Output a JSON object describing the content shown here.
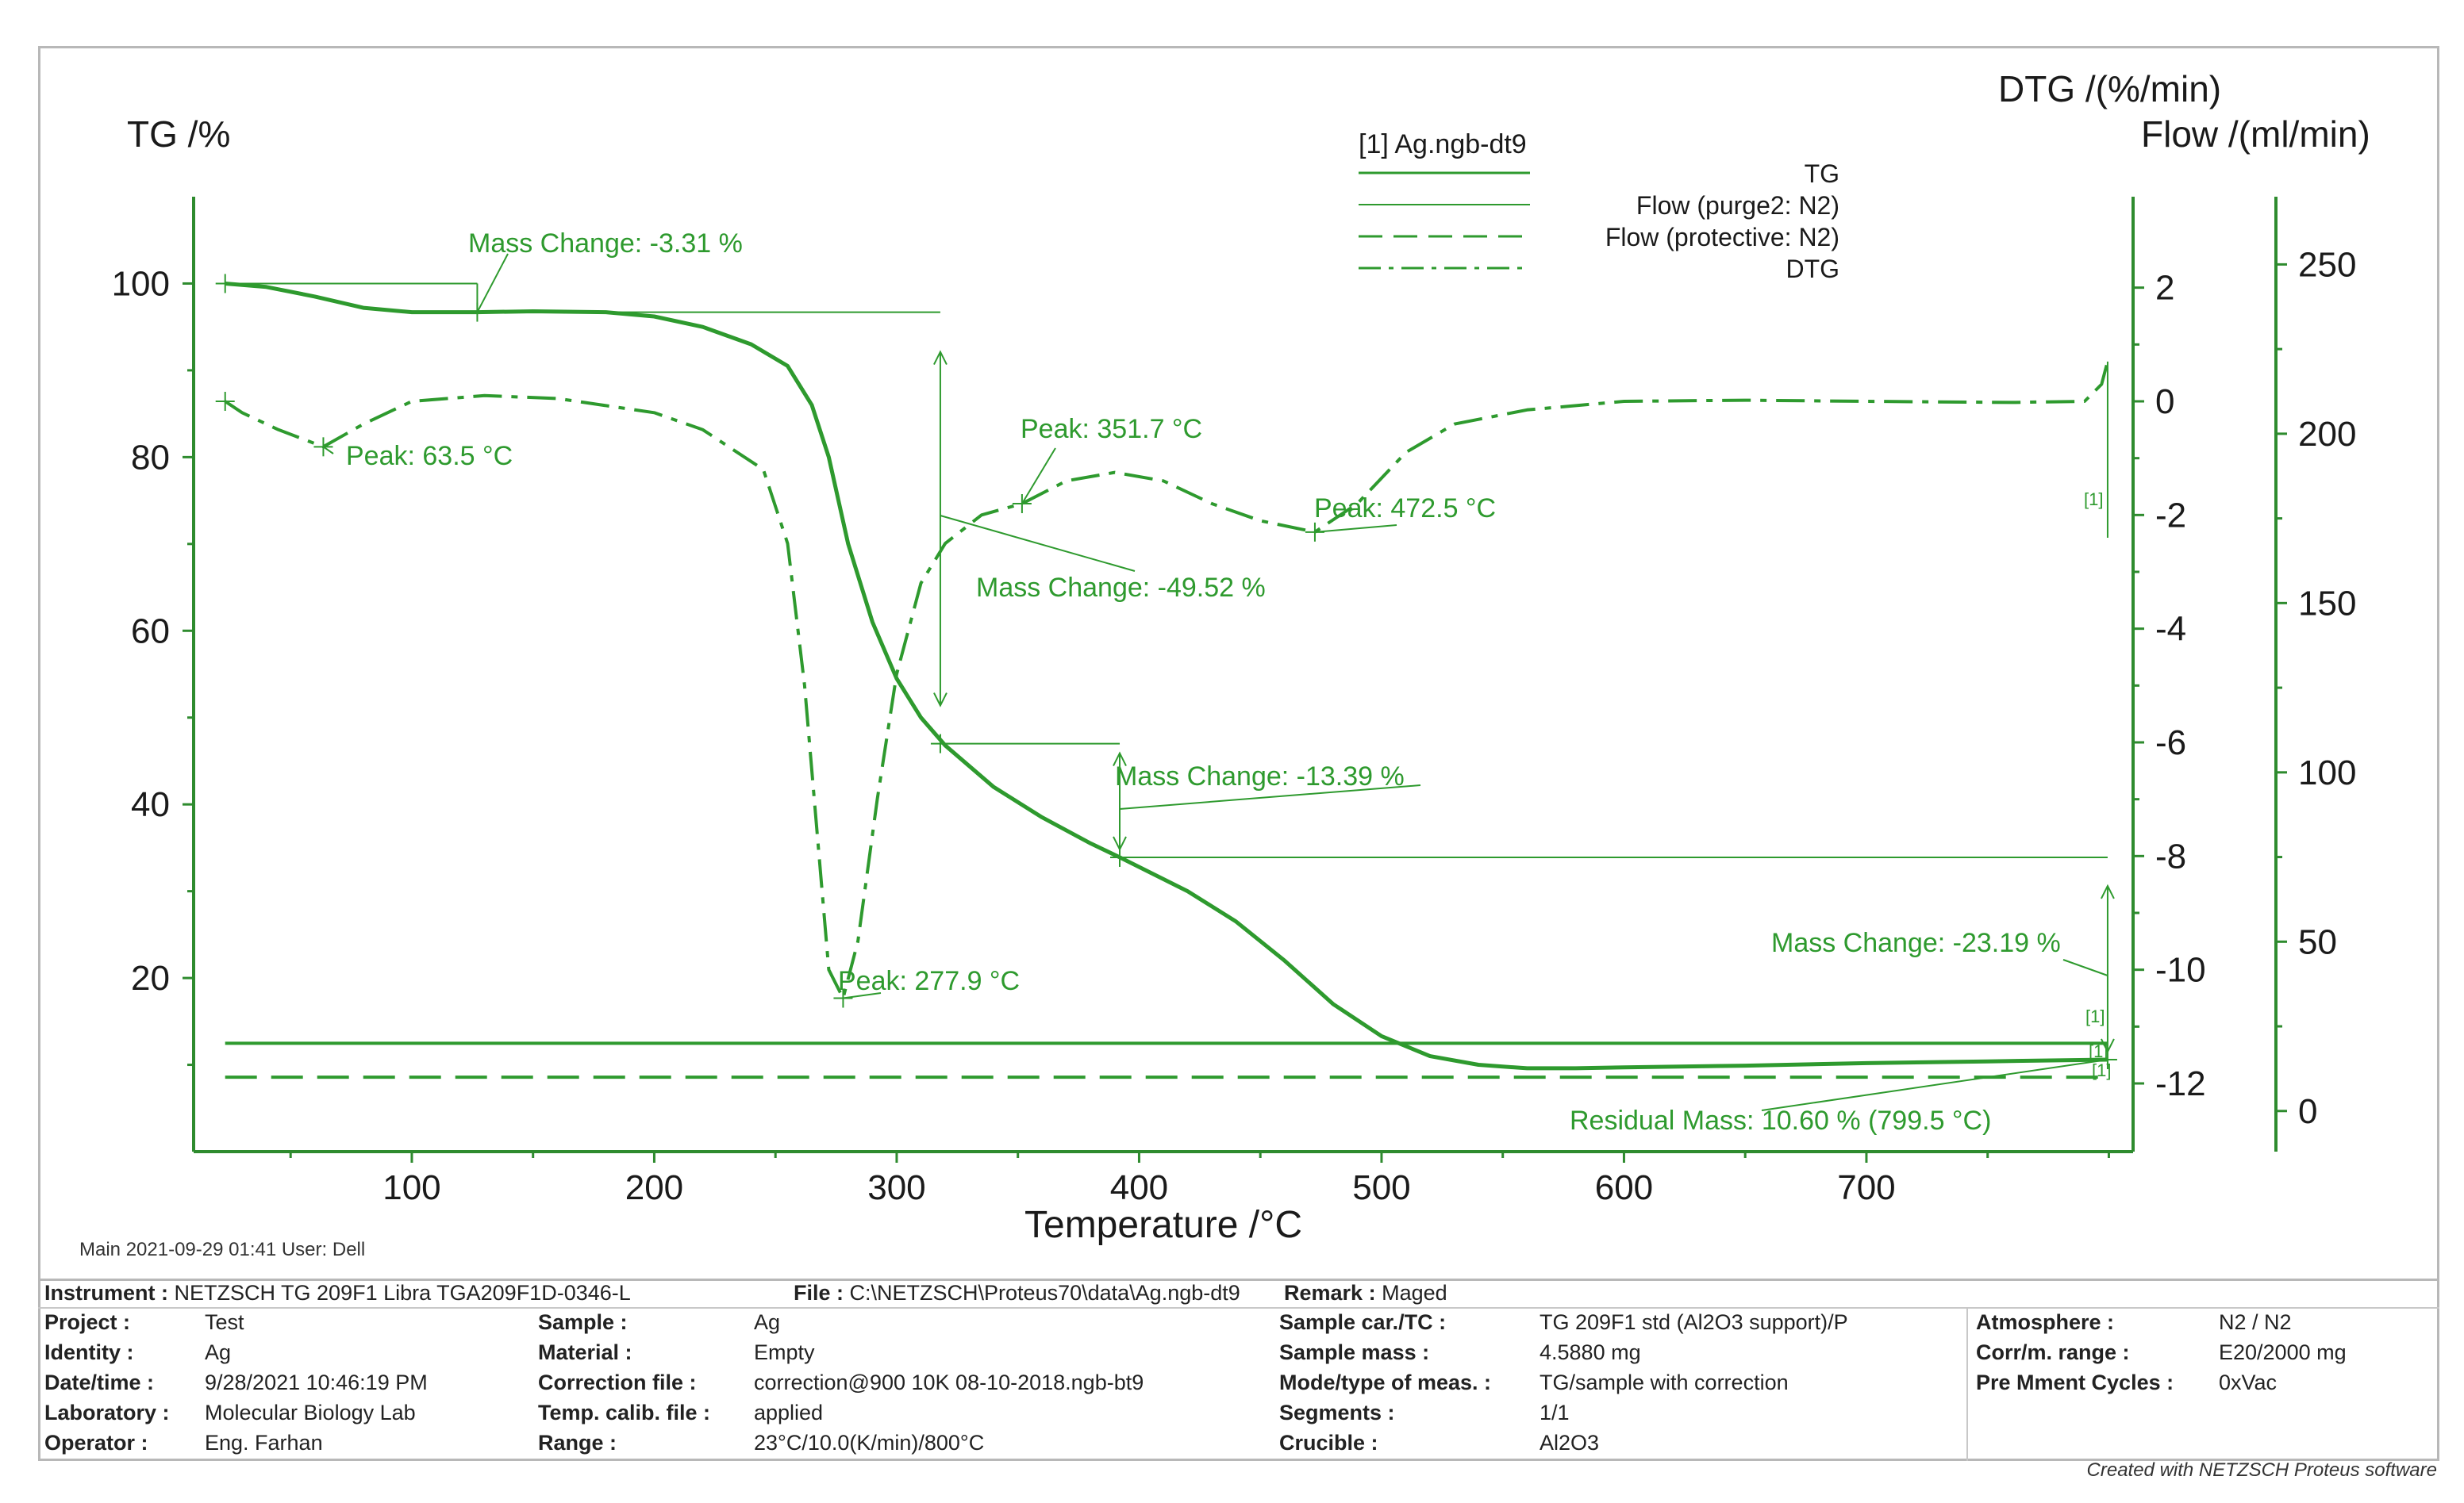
{
  "chart_data": {
    "type": "line",
    "title": "",
    "xlabel": "Temperature /°C",
    "xlim": [
      10,
      810
    ],
    "xticks": [
      100,
      200,
      300,
      400,
      500,
      600,
      700
    ],
    "left_axis": {
      "label": "TG /%",
      "lim": [
        0,
        110
      ],
      "ticks": [
        20,
        40,
        60,
        80,
        100
      ]
    },
    "dtg_axis": {
      "label": "DTG /(%/min)",
      "lim": [
        -13.2,
        3.6
      ],
      "ticks": [
        2,
        0,
        -2,
        -4,
        -6,
        -8,
        -10,
        -12
      ]
    },
    "flow_axis": {
      "label": "Flow /(ml/min)",
      "lim": [
        -12,
        270
      ],
      "ticks": [
        250,
        200,
        150,
        100,
        50,
        0
      ]
    },
    "legend": {
      "title": "[1]  Ag.ngb-dt9",
      "entries": [
        "TG",
        "Flow (purge2: N2)",
        "Flow (protective: N2)",
        "DTG"
      ],
      "placement": "top-right"
    },
    "series": [
      {
        "name": "TG",
        "axis": "left",
        "style": "solid",
        "x": [
          23,
          40,
          60,
          80,
          100,
          127,
          150,
          180,
          200,
          220,
          240,
          255,
          265,
          272,
          280,
          290,
          300,
          310,
          320,
          340,
          360,
          380,
          392,
          420,
          440,
          460,
          480,
          500,
          520,
          540,
          560,
          580,
          600,
          650,
          700,
          750,
          799.5
        ],
        "y": [
          100,
          99.6,
          98.5,
          97.2,
          96.7,
          96.7,
          96.8,
          96.7,
          96.2,
          95,
          93,
          90.5,
          86,
          80,
          70,
          61,
          54.5,
          50,
          46.8,
          42,
          38.5,
          35.5,
          33.9,
          30,
          26.5,
          22,
          17,
          13.3,
          11,
          10,
          9.6,
          9.6,
          9.7,
          9.9,
          10.2,
          10.4,
          10.6
        ]
      },
      {
        "name": "DTG",
        "axis": "dtg",
        "style": "dash-dot",
        "x": [
          23,
          30,
          45,
          63.5,
          80,
          100,
          130,
          160,
          200,
          220,
          245,
          255,
          262,
          268,
          272,
          277.9,
          284,
          292,
          300,
          310,
          320,
          335,
          351.7,
          370,
          390,
          410,
          430,
          450,
          472.5,
          490,
          510,
          530,
          560,
          600,
          650,
          700,
          760,
          790,
          797,
          799.5
        ],
        "y": [
          0,
          -0.2,
          -0.5,
          -0.8,
          -0.4,
          0,
          0.1,
          0.05,
          -0.2,
          -0.5,
          -1.2,
          -2.5,
          -5,
          -8,
          -10,
          -10.5,
          -9.5,
          -7,
          -4.8,
          -3.2,
          -2.5,
          -2,
          -1.8,
          -1.4,
          -1.25,
          -1.4,
          -1.8,
          -2.1,
          -2.3,
          -1.8,
          -0.9,
          -0.4,
          -0.15,
          0,
          0.02,
          0,
          -0.02,
          0,
          0.3,
          0.7
        ]
      },
      {
        "name": "Flow (purge2: N2)",
        "axis": "flow",
        "style": "solid",
        "x": [
          23,
          799.5
        ],
        "y": [
          20,
          20
        ]
      },
      {
        "name": "Flow (protective: N2)",
        "axis": "flow",
        "style": "dashed",
        "x": [
          23,
          799.5
        ],
        "y": [
          10,
          10
        ]
      }
    ],
    "annotations": [
      {
        "text": "Mass Change: -3.31 %"
      },
      {
        "text": "Peak: 63.5 °C"
      },
      {
        "text": "Peak: 351.7 °C"
      },
      {
        "text": "Peak: 472.5 °C"
      },
      {
        "text": "Mass Change: -49.52 %"
      },
      {
        "text": "Mass Change: -13.39 %"
      },
      {
        "text": "Mass Change: -23.19 %"
      },
      {
        "text": "Peak: 277.9 °C"
      },
      {
        "text": "Residual Mass: 10.60 % (799.5 °C)"
      }
    ],
    "segment_marks": [
      "[1]",
      "[1]",
      "[1]",
      "[1]"
    ]
  },
  "colors": {
    "curve": "#2e9a2e",
    "axis": "#2e8b2e",
    "text": "#1a1a1a",
    "border": "#b8b8b8"
  },
  "footer": {
    "meta": "Main    2021-09-29 01:41     User: Dell",
    "instrument_label": "Instrument :",
    "instrument_value": "NETZSCH TG 209F1 Libra TGA209F1D-0346-L",
    "file_label": "File :",
    "file_value": "C:\\NETZSCH\\Proteus70\\data\\Ag.ngb-dt9",
    "remark_label": "Remark :",
    "remark_value": "Maged",
    "col1": [
      {
        "label": "Project :",
        "value": "Test"
      },
      {
        "label": "Identity :",
        "value": "Ag"
      },
      {
        "label": "Date/time :",
        "value": "9/28/2021 10:46:19 PM"
      },
      {
        "label": "Laboratory :",
        "value": "Molecular Biology Lab"
      },
      {
        "label": "Operator :",
        "value": "Eng. Farhan"
      }
    ],
    "col2": [
      {
        "label": "Sample :",
        "value": "Ag"
      },
      {
        "label": "Material :",
        "value": "Empty"
      },
      {
        "label": "Correction file :",
        "value": "correction@900 10K 08-10-2018.ngb-bt9"
      },
      {
        "label": "Temp. calib. file :",
        "value": "applied"
      },
      {
        "label": "Range :",
        "value": "23°C/10.0(K/min)/800°C"
      }
    ],
    "col3": [
      {
        "label": "Sample car./TC :",
        "value": "TG 209F1 std (Al2O3 support)/P"
      },
      {
        "label": "Sample mass :",
        "value": "4.5880 mg"
      },
      {
        "label": "Mode/type of meas. :",
        "value": "TG/sample with correction"
      },
      {
        "label": "Segments :",
        "value": "1/1"
      },
      {
        "label": "Crucible :",
        "value": "Al2O3"
      }
    ],
    "col4": [
      {
        "label": "Atmosphere :",
        "value": "N2 / N2"
      },
      {
        "label": "Corr/m. range :",
        "value": "E20/2000 mg"
      },
      {
        "label": "Pre Mment Cycles :",
        "value": "0xVac"
      }
    ],
    "created": "Created with NETZSCH Proteus software"
  }
}
